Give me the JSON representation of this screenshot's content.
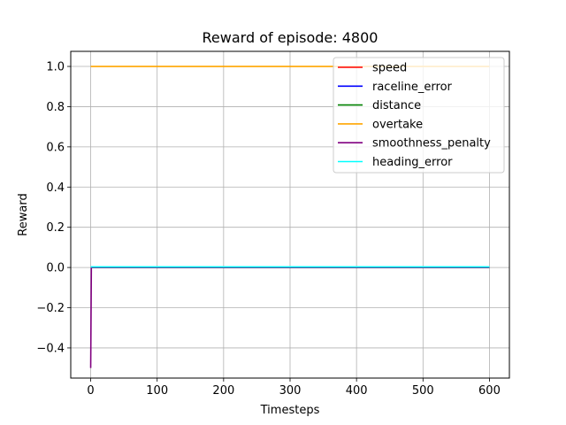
{
  "chart_data": {
    "type": "line",
    "title": "Reward of episode: 4800",
    "xlabel": "Timesteps",
    "ylabel": "Reward",
    "xlim": [
      -30,
      630
    ],
    "ylim": [
      -0.55,
      1.075
    ],
    "xticks": [
      0,
      100,
      200,
      300,
      400,
      500,
      600
    ],
    "yticks": [
      -0.4,
      -0.2,
      0.0,
      0.2,
      0.4,
      0.6,
      0.8,
      1.0
    ],
    "xtick_labels": [
      "0",
      "100",
      "200",
      "300",
      "400",
      "500",
      "600"
    ],
    "ytick_labels": [
      "−0.4",
      "−0.2",
      "0.0",
      "0.2",
      "0.4",
      "0.6",
      "0.8",
      "1.0"
    ],
    "grid": true,
    "legend_position": "top-right",
    "series": [
      {
        "name": "speed",
        "color": "#ff0000",
        "x": [
          0,
          600
        ],
        "y": [
          0.0,
          0.0
        ]
      },
      {
        "name": "raceline_error",
        "color": "#0000ff",
        "x": [
          0,
          600
        ],
        "y": [
          0.0,
          0.0
        ]
      },
      {
        "name": "distance",
        "color": "#008000",
        "x": [
          0,
          600
        ],
        "y": [
          0.0,
          0.0
        ]
      },
      {
        "name": "overtake",
        "color": "#ffa500",
        "x": [
          0,
          600
        ],
        "y": [
          1.0,
          1.0
        ]
      },
      {
        "name": "smoothness_penalty",
        "color": "#800080",
        "x": [
          0,
          1,
          600
        ],
        "y": [
          -0.5,
          0.0,
          0.0
        ]
      },
      {
        "name": "heading_error",
        "color": "#00ffff",
        "x": [
          0,
          600
        ],
        "y": [
          0.003,
          0.003
        ]
      }
    ]
  }
}
